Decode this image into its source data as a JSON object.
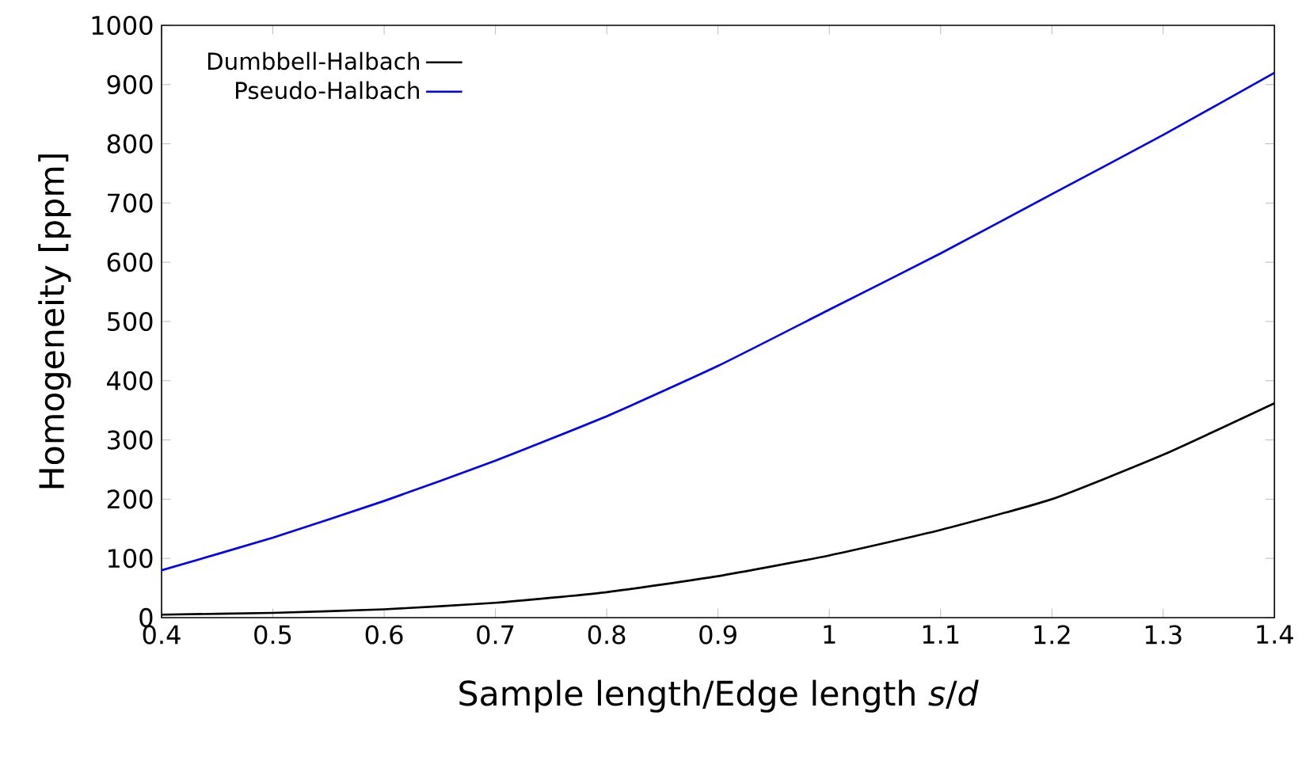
{
  "chart_data": {
    "type": "line",
    "xlabel": "Sample length/Edge length *s*/*d*",
    "ylabel": "Homogeneity [ppm]",
    "x": [
      0.4,
      0.5,
      0.6,
      0.7,
      0.8,
      0.9,
      1.0,
      1.1,
      1.2,
      1.3,
      1.4
    ],
    "series": [
      {
        "name": "Dumbbell-Halbach",
        "color": "#000000",
        "values": [
          5,
          8,
          14,
          25,
          43,
          70,
          105,
          148,
          200,
          275,
          362
        ]
      },
      {
        "name": "Pseudo-Halbach",
        "color": "#0000ff",
        "values": [
          80,
          135,
          197,
          265,
          340,
          425,
          520,
          615,
          715,
          815,
          920
        ]
      }
    ],
    "xlim": [
      0.4,
      1.4
    ],
    "ylim": [
      0,
      1000
    ],
    "xticks": [
      0.4,
      0.5,
      0.6,
      0.7,
      0.8,
      0.9,
      1,
      1.1,
      1.2,
      1.3,
      1.4
    ],
    "yticks": [
      0,
      100,
      200,
      300,
      400,
      500,
      600,
      700,
      800,
      900,
      1000
    ],
    "legend": "top left"
  }
}
